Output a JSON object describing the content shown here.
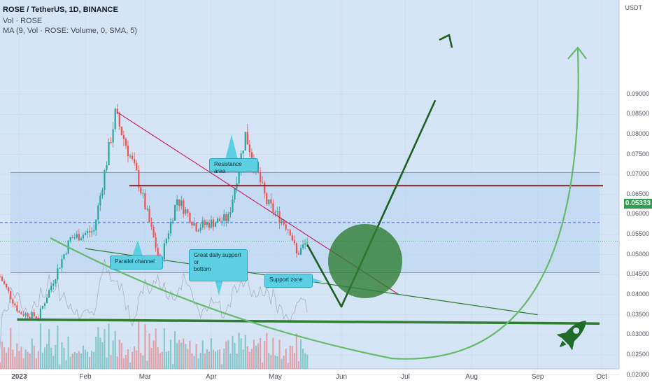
{
  "header": {
    "title": "ROSE / TetherUS, 1D, BINANCE",
    "vol": "Vol · ROSE",
    "ma": "MA (9, Vol · ROSE: Volume, 0, SMA, 5)"
  },
  "price_axis": {
    "unit": "USDT",
    "current_price": "0.05333",
    "ticks": [
      "0.09000",
      "0.08500",
      "0.08000",
      "0.07500",
      "0.07000",
      "0.06500",
      "0.06000",
      "0.05500",
      "0.05000",
      "0.04500",
      "0.04000",
      "0.03500",
      "0.03000",
      "0.02500",
      "0.02000"
    ]
  },
  "time_axis": {
    "labels": [
      "2023",
      "Feb",
      "Mar",
      "Apr",
      "May",
      "Jun",
      "Jul",
      "Aug",
      "Sep",
      "Oct"
    ]
  },
  "annotations": {
    "parallel_channel": "Parallel channel",
    "daily_support": "Great daily support\nor\nbottom",
    "support_zone": "Support zone",
    "resistance_area": "Resistance area"
  },
  "colors": {
    "up": "#26a69a",
    "down": "#ef5350",
    "trend_green": "#2e7d32",
    "arrow_light": "#66bb6a",
    "resistance_line": "#8b1a1a",
    "downtrend": "#c2185b"
  },
  "chart_data": {
    "type": "candlestick",
    "title": "ROSE / TetherUS, 1D, BINANCE",
    "xlabel": "",
    "ylabel": "USDT",
    "ylim": [
      0.02,
      0.092
    ],
    "x_range": [
      "2022-12-23",
      "2023-10-05"
    ],
    "current_price": 0.05333,
    "price_path_keypoints": [
      {
        "date": "2022-12-23",
        "price": 0.0445
      },
      {
        "date": "2023-01-01",
        "price": 0.0355
      },
      {
        "date": "2023-01-10",
        "price": 0.0345
      },
      {
        "date": "2023-01-25",
        "price": 0.054
      },
      {
        "date": "2023-02-05",
        "price": 0.056
      },
      {
        "date": "2023-02-15",
        "price": 0.085
      },
      {
        "date": "2023-02-25",
        "price": 0.07
      },
      {
        "date": "2023-03-08",
        "price": 0.048
      },
      {
        "date": "2023-03-16",
        "price": 0.064
      },
      {
        "date": "2023-03-25",
        "price": 0.057
      },
      {
        "date": "2023-04-09",
        "price": 0.059
      },
      {
        "date": "2023-04-17",
        "price": 0.08
      },
      {
        "date": "2023-04-27",
        "price": 0.063
      },
      {
        "date": "2023-05-08",
        "price": 0.056
      },
      {
        "date": "2023-05-11",
        "price": 0.05
      },
      {
        "date": "2023-05-16",
        "price": 0.0533
      }
    ],
    "levels": {
      "range_top": 0.0705,
      "range_bottom": 0.0455,
      "resistance": 0.0672,
      "mid_dashed": 0.058,
      "support_bottom": 0.0335
    },
    "trendlines": [
      {
        "name": "downtrend",
        "from": {
          "date": "2023-02-16",
          "price": 0.0855
        },
        "to": {
          "date": "2023-06-28",
          "price": 0.04
        }
      },
      {
        "name": "channel-lower",
        "from": {
          "date": "2023-02-01",
          "price": 0.0515
        },
        "to": {
          "date": "2023-09-01",
          "price": 0.035
        }
      },
      {
        "name": "support",
        "from": {
          "date": "2022-12-31",
          "price": 0.0338
        },
        "to": {
          "date": "2023-09-30",
          "price": 0.0328
        }
      }
    ],
    "projection": [
      {
        "date": "2023-05-16",
        "price": 0.0525
      },
      {
        "date": "2023-06-01",
        "price": 0.037
      },
      {
        "date": "2023-07-15",
        "price": 0.0885
      }
    ],
    "volume_scale": "relative"
  }
}
